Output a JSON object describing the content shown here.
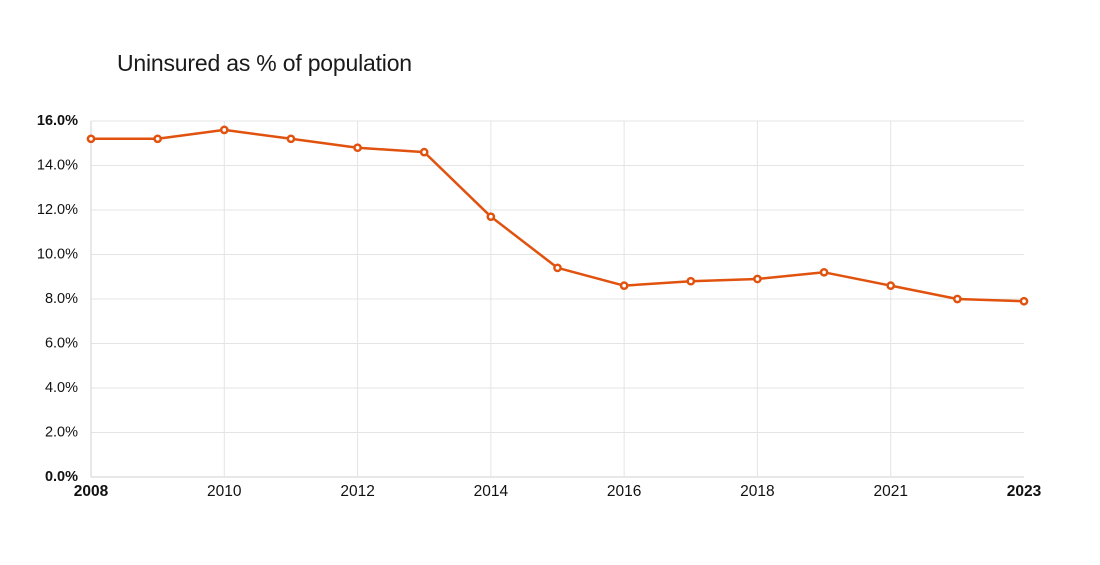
{
  "chart_data": {
    "type": "line",
    "title": "Uninsured as % of population",
    "x_is_categorical": true,
    "note": "2020 has no data point; x spacing is uniform across the 15 categories",
    "categories": [
      "2008",
      "2009",
      "2010",
      "2011",
      "2012",
      "2013",
      "2014",
      "2015",
      "2016",
      "2017",
      "2018",
      "2019",
      "2021",
      "2022",
      "2023"
    ],
    "series": [
      {
        "name": "Uninsured as % of population",
        "values": [
          15.2,
          15.2,
          15.6,
          15.2,
          14.8,
          14.6,
          11.7,
          9.4,
          8.6,
          8.8,
          8.9,
          9.2,
          8.6,
          8.0,
          7.9
        ]
      }
    ],
    "ylim": [
      0,
      16
    ],
    "y_ticks": [
      {
        "value": 0,
        "label": "0.0%",
        "bold": true
      },
      {
        "value": 2,
        "label": "2.0%",
        "bold": false
      },
      {
        "value": 4,
        "label": "4.0%",
        "bold": false
      },
      {
        "value": 6,
        "label": "6.0%",
        "bold": false
      },
      {
        "value": 8,
        "label": "8.0%",
        "bold": false
      },
      {
        "value": 10,
        "label": "10.0%",
        "bold": false
      },
      {
        "value": 12,
        "label": "12.0%",
        "bold": false
      },
      {
        "value": 14,
        "label": "14.0%",
        "bold": false
      },
      {
        "value": 16,
        "label": "16.0%",
        "bold": true
      }
    ],
    "x_ticks": [
      {
        "index": 0,
        "label": "2008",
        "bold": true,
        "gridline": true
      },
      {
        "index": 2,
        "label": "2010",
        "bold": false,
        "gridline": true
      },
      {
        "index": 4,
        "label": "2012",
        "bold": false,
        "gridline": true
      },
      {
        "index": 6,
        "label": "2014",
        "bold": false,
        "gridline": true
      },
      {
        "index": 8,
        "label": "2016",
        "bold": false,
        "gridline": true
      },
      {
        "index": 10,
        "label": "2018",
        "bold": false,
        "gridline": true
      },
      {
        "index": 12,
        "label": "2021",
        "bold": false,
        "gridline": true
      },
      {
        "index": 14,
        "label": "2023",
        "bold": true,
        "gridline": false
      }
    ],
    "grid": "horizontal at every y tick; vertical only at labeled x ticks (except last)",
    "legend": "none",
    "colors": {
      "line": "#e0520e",
      "marker_fill": "#ffffff",
      "gridline": "#e4e4e4",
      "axis_line": "#d2d2d2",
      "text": "#111111"
    },
    "marker": "open-circle"
  }
}
